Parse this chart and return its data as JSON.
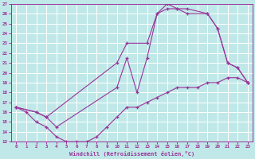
{
  "xlabel": "Windchill (Refroidissement éolien,°C)",
  "xlim": [
    -0.5,
    23.5
  ],
  "ylim": [
    13,
    27
  ],
  "xticks": [
    0,
    1,
    2,
    3,
    4,
    5,
    6,
    7,
    8,
    9,
    10,
    11,
    12,
    13,
    14,
    15,
    16,
    17,
    18,
    19,
    20,
    21,
    22,
    23
  ],
  "yticks": [
    13,
    14,
    15,
    16,
    17,
    18,
    19,
    20,
    21,
    22,
    23,
    24,
    25,
    26,
    27
  ],
  "bg_color": "#c0e8e8",
  "grid_color": "#ffffff",
  "line_color": "#993399",
  "curves": [
    {
      "x": [
        0,
        1,
        2,
        3,
        4,
        5,
        6,
        7,
        8,
        9,
        10,
        11,
        12,
        13,
        14,
        15,
        16,
        17,
        18,
        19,
        20,
        21,
        22,
        23
      ],
      "y": [
        16.5,
        16.0,
        15.0,
        14.5,
        13.5,
        13.0,
        13.0,
        13.0,
        13.5,
        14.5,
        15.5,
        16.5,
        16.5,
        17.0,
        17.5,
        18.0,
        18.5,
        18.5,
        18.5,
        19.0,
        19.0,
        19.5,
        19.5,
        19.0
      ]
    },
    {
      "x": [
        0,
        2,
        3,
        4,
        10,
        11,
        12,
        13,
        14,
        15,
        16,
        17,
        19,
        20,
        21,
        22,
        23
      ],
      "y": [
        16.5,
        16.0,
        15.5,
        14.5,
        18.5,
        21.5,
        18.0,
        21.5,
        26.0,
        26.5,
        26.5,
        26.0,
        26.0,
        24.5,
        21.0,
        20.5,
        19.0
      ]
    },
    {
      "x": [
        0,
        2,
        3,
        10,
        11,
        13,
        14,
        15,
        16,
        17,
        19,
        20,
        21,
        22,
        23
      ],
      "y": [
        16.5,
        16.0,
        15.5,
        21.0,
        23.0,
        23.0,
        26.0,
        27.0,
        26.5,
        26.5,
        26.0,
        24.5,
        21.0,
        20.5,
        19.0
      ]
    }
  ]
}
